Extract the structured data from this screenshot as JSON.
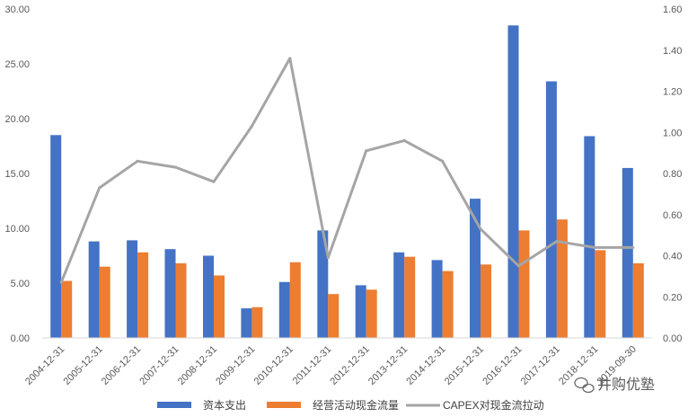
{
  "chart_data": {
    "type": "bar",
    "categories": [
      "2004-12-31",
      "2005-12-31",
      "2006-12-31",
      "2007-12-31",
      "2008-12-31",
      "2009-12-31",
      "2010-12-31",
      "2011-12-31",
      "2012-12-31",
      "2013-12-31",
      "2014-12-31",
      "2015-12-31",
      "2016-12-31",
      "2017-12-31",
      "2018-12-31",
      "2019-09-30"
    ],
    "series": [
      {
        "name": "资本支出",
        "type": "bar",
        "axis": "left",
        "color": "#4472C4",
        "values": [
          18.5,
          8.8,
          8.9,
          8.1,
          7.5,
          2.7,
          5.1,
          9.8,
          4.8,
          7.8,
          7.1,
          12.7,
          28.5,
          23.4,
          18.4,
          15.5
        ]
      },
      {
        "name": "经营活动现金流量",
        "type": "bar",
        "axis": "left",
        "color": "#ED7D31",
        "values": [
          5.2,
          6.5,
          7.8,
          6.8,
          5.7,
          2.8,
          6.9,
          4.0,
          4.4,
          7.4,
          6.1,
          6.7,
          9.8,
          10.8,
          8.0,
          6.8
        ]
      },
      {
        "name": "CAPEX对现金流拉动",
        "type": "line",
        "axis": "right",
        "color": "#A5A5A5",
        "values": [
          0.27,
          0.73,
          0.86,
          0.83,
          0.76,
          1.03,
          1.36,
          0.39,
          0.91,
          0.96,
          0.86,
          0.53,
          0.35,
          0.47,
          0.44,
          0.44
        ]
      }
    ],
    "left_axis": {
      "min": 0,
      "max": 30,
      "step": 5,
      "tick_labels": [
        "0.00",
        "5.00",
        "10.00",
        "15.00",
        "20.00",
        "25.00",
        "30.00"
      ]
    },
    "right_axis": {
      "min": 0,
      "max": 1.6,
      "step": 0.2,
      "tick_labels": [
        "0.00",
        "0.20",
        "0.40",
        "0.60",
        "0.80",
        "1.00",
        "1.20",
        "1.40",
        "1.60"
      ]
    },
    "grid": false,
    "legend_position": "bottom"
  },
  "watermark": {
    "text": "井购优塾"
  }
}
